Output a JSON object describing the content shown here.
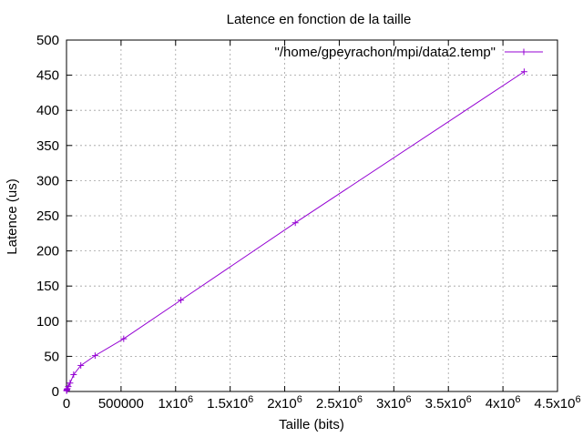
{
  "chart_data": {
    "type": "line",
    "title": "Latence en fonction de la taille",
    "xlabel": "Taille (bits)",
    "ylabel": "Latence (us)",
    "xlim": [
      0,
      4500000
    ],
    "ylim": [
      0,
      500
    ],
    "grid": true,
    "legend_position": "top-right",
    "x_ticks": [
      {
        "value": 0,
        "mantissa": "0",
        "exp": ""
      },
      {
        "value": 500000,
        "mantissa": "500000",
        "exp": ""
      },
      {
        "value": 1000000,
        "mantissa": "1x10",
        "exp": "6"
      },
      {
        "value": 1500000,
        "mantissa": "1.5x10",
        "exp": "6"
      },
      {
        "value": 2000000,
        "mantissa": "2x10",
        "exp": "6"
      },
      {
        "value": 2500000,
        "mantissa": "2.5x10",
        "exp": "6"
      },
      {
        "value": 3000000,
        "mantissa": "3x10",
        "exp": "6"
      },
      {
        "value": 3500000,
        "mantissa": "3.5x10",
        "exp": "6"
      },
      {
        "value": 4000000,
        "mantissa": "4x10",
        "exp": "6"
      },
      {
        "value": 4500000,
        "mantissa": "4.5x10",
        "exp": "6"
      }
    ],
    "y_ticks": [
      0,
      50,
      100,
      150,
      200,
      250,
      300,
      350,
      400,
      450,
      500
    ],
    "series": [
      {
        "name": "\"/home/gpeyrachon/mpi/data2.temp\"",
        "color": "#9400d3",
        "marker": "plus",
        "x": [
          1024,
          2048,
          4096,
          8192,
          16384,
          32768,
          65536,
          131072,
          262144,
          524288,
          1048576,
          2097152,
          4194304
        ],
        "y": [
          1,
          2,
          3,
          4,
          7,
          12,
          24,
          37,
          51,
          75,
          130,
          240,
          455
        ]
      }
    ]
  }
}
